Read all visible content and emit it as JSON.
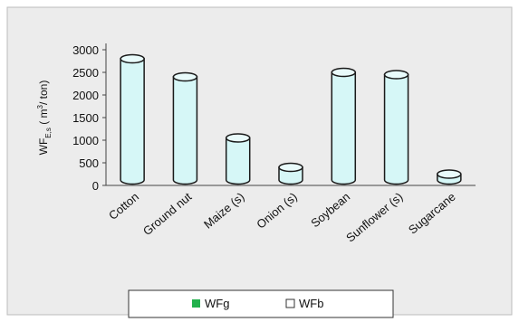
{
  "chart_data": {
    "type": "bar",
    "bar_style": "3d-cylinder",
    "categories": [
      "Cotton",
      "Ground nut",
      "Maize (s)",
      "Onion (s)",
      "Soybean",
      "Sunflower (s)",
      "Sugarcane"
    ],
    "series": [
      {
        "name": "WFg",
        "values": [
          0,
          0,
          0,
          0,
          0,
          0,
          0
        ],
        "color": "#22b14c"
      },
      {
        "name": "WFb",
        "values": [
          2800,
          2400,
          1050,
          400,
          2500,
          2450,
          250
        ],
        "color": "#d6f7f7"
      }
    ],
    "title": "",
    "xlabel": "",
    "ylabel": {
      "main": "WF",
      "subscript": "E,s",
      "units": " ( m",
      "superscript": "3",
      "units_end": "/ ton)"
    },
    "yticks": [
      0,
      500,
      1000,
      1500,
      2000,
      2500,
      3000
    ],
    "ylim": [
      0,
      3000
    ],
    "grid": false,
    "legend_position": "bottom",
    "colors": {
      "background": "#ececec",
      "bar_outline": "#1a1a1a",
      "axis": "#444444"
    }
  }
}
